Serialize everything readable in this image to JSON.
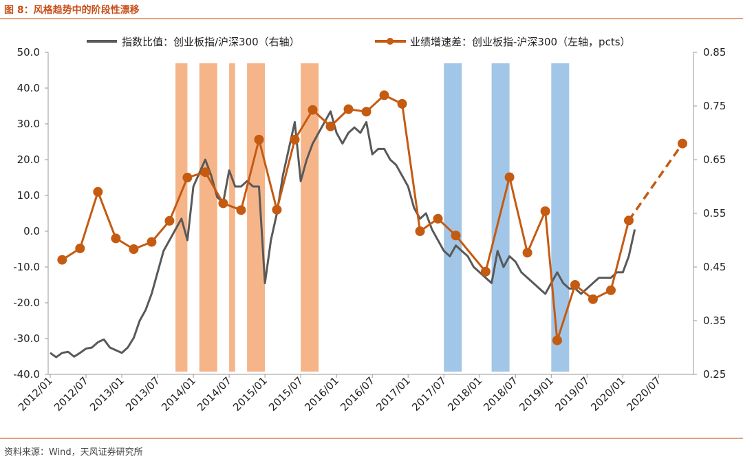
{
  "header": {
    "title": "图 8：风格趋势中的阶段性漂移"
  },
  "footer": {
    "source": "资料来源：Wind，天风证券研究所"
  },
  "chart_data": {
    "type": "line",
    "legend": [
      {
        "name": "指数比值：创业板指/沪深300（右轴）",
        "color": "#595959"
      },
      {
        "name": "业绩增速差：创业板指-沪深300（左轴，pcts）",
        "color": "#c55a11"
      }
    ],
    "x_tick_labels": [
      "2012/01",
      "2012/07",
      "2013/01",
      "2013/07",
      "2014/01",
      "2014/07",
      "2015/01",
      "2015/07",
      "2016/01",
      "2016/07",
      "2017/01",
      "2017/07",
      "2018/01",
      "2018/07",
      "2019/01",
      "2019/07",
      "2020/01",
      "2020/07"
    ],
    "left_axis": {
      "min": -40,
      "max": 50,
      "step": 10,
      "tick_labels": [
        "-40.0",
        "-30.0",
        "-20.0",
        "-10.0",
        "0.0",
        "10.0",
        "20.0",
        "30.0",
        "40.0",
        "50.0"
      ]
    },
    "right_axis": {
      "min": 0.25,
      "max": 0.85,
      "step": 0.1,
      "tick_labels": [
        "0.25",
        "0.35",
        "0.45",
        "0.55",
        "0.65",
        "0.75",
        "0.85"
      ]
    },
    "shaded_periods_orange": [
      [
        "2013/10",
        "2013/12"
      ],
      [
        "2014/02",
        "2014/05"
      ],
      [
        "2014/07",
        "2014/08"
      ],
      [
        "2014/10",
        "2015/01"
      ],
      [
        "2015/07",
        "2015/10"
      ]
    ],
    "shaded_periods_blue": [
      [
        "2017/07",
        "2017/10"
      ],
      [
        "2018/03",
        "2018/06"
      ],
      [
        "2019/01",
        "2019/04"
      ]
    ],
    "series": [
      {
        "name": "业绩增速差：创业板指-沪深300（左轴，pcts）",
        "axis": "left",
        "x": [
          "2012/03",
          "2012/06",
          "2012/09",
          "2012/12",
          "2013/03",
          "2013/06",
          "2013/09",
          "2013/12",
          "2014/03",
          "2014/06",
          "2014/09",
          "2014/12",
          "2015/03",
          "2015/06",
          "2015/09",
          "2015/12",
          "2016/03",
          "2016/06",
          "2016/09",
          "2016/12",
          "2017/03",
          "2017/06",
          "2017/09",
          "2018/02",
          "2018/06",
          "2018/09",
          "2018/12",
          "2019/02",
          "2019/05",
          "2019/08",
          "2019/11",
          "2020/02",
          "2020/11"
        ],
        "values": [
          -8,
          -4.8,
          11,
          -2,
          -5,
          -3,
          2.9,
          15,
          16.5,
          7.8,
          5.9,
          25.6,
          6,
          25.6,
          33.9,
          29.3,
          34.1,
          33.4,
          38,
          35.6,
          0,
          3.5,
          -1.2,
          -11.3,
          15.1,
          -6,
          5.6,
          -30.5,
          -15,
          -19,
          -16.5,
          3,
          24.5
        ],
        "solid_until_index": 31
      },
      {
        "name": "指数比值：创业板指/沪深300（右轴）",
        "axis": "right",
        "x": [
          "2012/01",
          "2012/02",
          "2012/03",
          "2012/04",
          "2012/05",
          "2012/06",
          "2012/07",
          "2012/08",
          "2012/09",
          "2012/10",
          "2012/11",
          "2012/12",
          "2013/01",
          "2013/02",
          "2013/03",
          "2013/04",
          "2013/05",
          "2013/06",
          "2013/07",
          "2013/08",
          "2013/09",
          "2013/10",
          "2013/11",
          "2013/12",
          "2014/01",
          "2014/02",
          "2014/03",
          "2014/04",
          "2014/05",
          "2014/06",
          "2014/07",
          "2014/08",
          "2014/09",
          "2014/10",
          "2014/11",
          "2014/12",
          "2015/01",
          "2015/02",
          "2015/03",
          "2015/04",
          "2015/05",
          "2015/06",
          "2015/07",
          "2015/08",
          "2015/09",
          "2015/10",
          "2015/11",
          "2015/12",
          "2016/01",
          "2016/02",
          "2016/03",
          "2016/04",
          "2016/05",
          "2016/06",
          "2016/07",
          "2016/08",
          "2016/09",
          "2016/10",
          "2016/11",
          "2016/12",
          "2017/01",
          "2017/02",
          "2017/03",
          "2017/04",
          "2017/05",
          "2017/06",
          "2017/07",
          "2017/08",
          "2017/09",
          "2017/10",
          "2017/11",
          "2017/12",
          "2018/01",
          "2018/02",
          "2018/03",
          "2018/04",
          "2018/05",
          "2018/06",
          "2018/07",
          "2018/08",
          "2018/09",
          "2018/10",
          "2018/11",
          "2018/12",
          "2019/01",
          "2019/02",
          "2019/03",
          "2019/04",
          "2019/05",
          "2019/06",
          "2019/07",
          "2019/08",
          "2019/09",
          "2019/10",
          "2019/11",
          "2019/12",
          "2020/01",
          "2020/02",
          "2020/03"
        ],
        "values": [
          0.29,
          0.282,
          0.29,
          0.292,
          0.283,
          0.29,
          0.298,
          0.3,
          0.31,
          0.315,
          0.3,
          0.295,
          0.29,
          0.3,
          0.318,
          0.35,
          0.37,
          0.4,
          0.44,
          0.48,
          0.5,
          0.52,
          0.54,
          0.5,
          0.6,
          0.625,
          0.65,
          0.62,
          0.58,
          0.57,
          0.63,
          0.6,
          0.6,
          0.61,
          0.6,
          0.6,
          0.42,
          0.5,
          0.55,
          0.62,
          0.67,
          0.72,
          0.61,
          0.65,
          0.68,
          0.7,
          0.72,
          0.74,
          0.7,
          0.68,
          0.7,
          0.71,
          0.7,
          0.72,
          0.66,
          0.67,
          0.67,
          0.65,
          0.64,
          0.62,
          0.6,
          0.56,
          0.54,
          0.55,
          0.52,
          0.5,
          0.48,
          0.47,
          0.49,
          0.48,
          0.47,
          0.45,
          0.44,
          0.43,
          0.42,
          0.48,
          0.45,
          0.47,
          0.46,
          0.44,
          0.43,
          0.42,
          0.41,
          0.4,
          0.42,
          0.44,
          0.42,
          0.41,
          0.41,
          0.4,
          0.41,
          0.42,
          0.43,
          0.43,
          0.43,
          0.44,
          0.44,
          0.47,
          0.52
        ]
      }
    ]
  }
}
